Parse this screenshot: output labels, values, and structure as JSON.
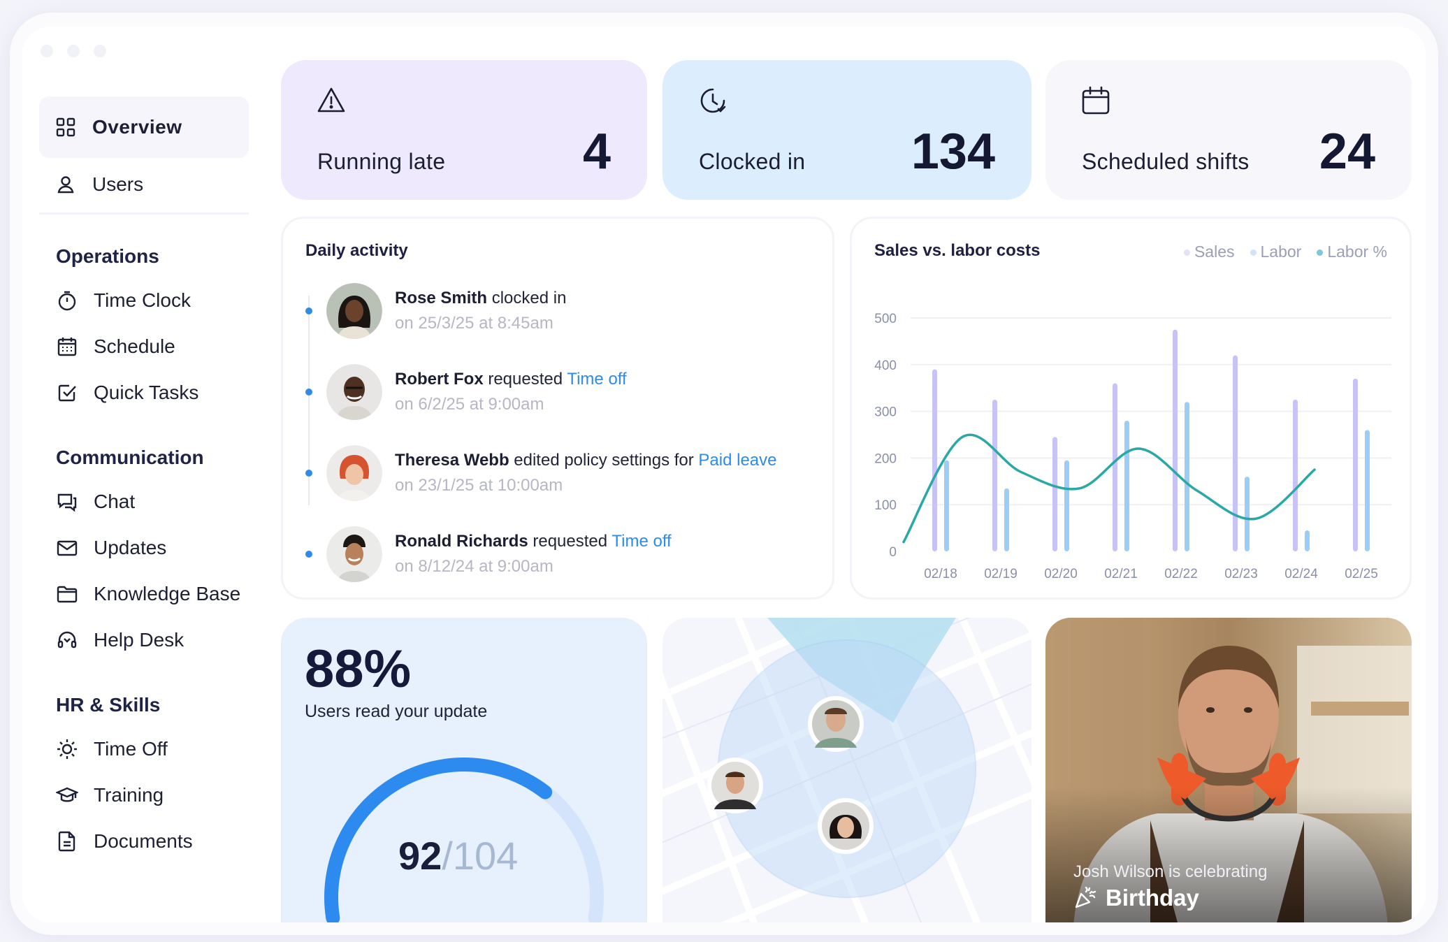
{
  "sidebar": {
    "overview": "Overview",
    "users": "Users",
    "sections": [
      {
        "title": "Operations",
        "items": [
          "Time Clock",
          "Schedule",
          "Quick Tasks"
        ]
      },
      {
        "title": "Communication",
        "items": [
          "Chat",
          "Updates",
          "Knowledge Base",
          "Help Desk"
        ]
      },
      {
        "title": "HR & Skills",
        "items": [
          "Time Off",
          "Training",
          "Documents"
        ]
      }
    ]
  },
  "stats": [
    {
      "label": "Running late",
      "value": "4",
      "icon": "warning-icon",
      "bg": "#efe9fd"
    },
    {
      "label": "Clocked in",
      "value": "134",
      "icon": "clock-icon",
      "bg": "#dceefd"
    },
    {
      "label": "Scheduled shifts",
      "value": "24",
      "icon": "calendar-icon",
      "bg": "#f6f6fb"
    }
  ],
  "activity": {
    "title": "Daily activity",
    "items": [
      {
        "name": "Rose Smith",
        "action": " clocked in",
        "link": "",
        "date": "on 25/3/25 at 8:45am"
      },
      {
        "name": "Robert Fox",
        "action": " requested ",
        "link": "Time off",
        "date": "on 6/2/25 at 9:00am"
      },
      {
        "name": "Theresa Webb",
        "action": " edited policy settings for ",
        "link": "Paid leave",
        "date": "on 23/1/25 at 10:00am"
      },
      {
        "name": "Ronald Richards",
        "action": " requested ",
        "link": "Time off",
        "date": "on 8/12/24 at 9:00am"
      }
    ]
  },
  "chart_data": {
    "type": "bar",
    "title": "Sales vs. labor costs",
    "categories": [
      "02/18",
      "02/19",
      "02/20",
      "02/21",
      "02/22",
      "02/23",
      "02/24",
      "02/25"
    ],
    "series": [
      {
        "name": "Sales",
        "values": [
          390,
          325,
          245,
          360,
          475,
          420,
          325,
          370
        ],
        "color": "#c8c3f7"
      },
      {
        "name": "Labor",
        "values": [
          195,
          135,
          195,
          280,
          320,
          160,
          45,
          260
        ],
        "color": "#9ccdf6"
      },
      {
        "name": "Labor %",
        "type": "line",
        "x": [
          1.5,
          3.0,
          4.5,
          6.0,
          7.5,
          9.0,
          10.5,
          12.0
        ],
        "values": [
          20,
          245,
          170,
          135,
          220,
          130,
          70,
          175
        ],
        "color": "#2aa8a6"
      }
    ],
    "yticks": [
      0,
      100,
      200,
      300,
      400,
      500
    ],
    "ylim": [
      0,
      500
    ],
    "grid": true,
    "legend": "top-right"
  },
  "read_update": {
    "percent": "88%",
    "label": "Users read your update",
    "read": "92",
    "total": "/104",
    "fraction": 0.885
  },
  "birthday": {
    "line1": "Josh Wilson is celebrating",
    "line2": "Birthday"
  }
}
